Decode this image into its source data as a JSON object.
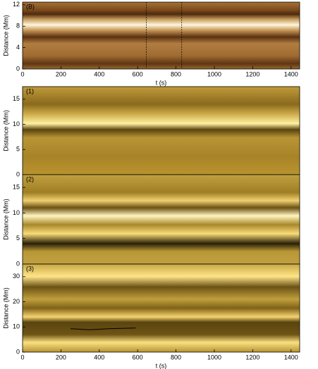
{
  "chart_data": [
    {
      "type": "image",
      "title": "(B)",
      "ylabel": "Distance (Mm)",
      "xlabel": "t (s)",
      "xlim": [
        0,
        1445
      ],
      "ylim": [
        0,
        12.5
      ],
      "xticks": [
        0,
        200,
        400,
        600,
        800,
        1000,
        1200,
        1400
      ],
      "yticks": [
        0,
        4,
        8,
        12
      ],
      "vlines": [
        645,
        830
      ]
    },
    {
      "type": "image",
      "title": "(1)",
      "ylabel": "Distance (Mm)",
      "xlim": [
        0,
        1445
      ],
      "ylim": [
        0,
        17.5
      ],
      "yticks": [
        0,
        5,
        10,
        15
      ]
    },
    {
      "type": "image",
      "title": "(2)",
      "ylabel": "Distance (Mm)",
      "xlim": [
        0,
        1445
      ],
      "ylim": [
        0,
        17.5
      ],
      "yticks": [
        0,
        5,
        10,
        15
      ]
    },
    {
      "type": "image",
      "title": "(3)",
      "ylabel": "Distance (Mm)",
      "xlabel": "t (s)",
      "xlim": [
        0,
        1445
      ],
      "ylim": [
        0,
        35
      ],
      "xticks": [
        0,
        200,
        400,
        600,
        800,
        1000,
        1200,
        1400
      ],
      "yticks": [
        0,
        10,
        20,
        30
      ],
      "curve": {
        "x": [
          250,
          350,
          450,
          590
        ],
        "y": [
          9.3,
          8.9,
          9.3,
          9.6
        ]
      }
    }
  ]
}
